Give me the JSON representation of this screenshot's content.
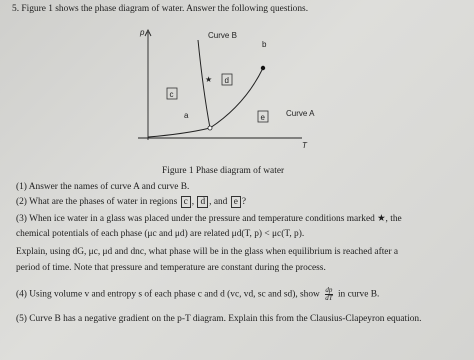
{
  "problem": {
    "heading": "5. Figure 1 shows the phase diagram of water. Answer the following questions.",
    "figure": {
      "axis_y": "p",
      "axis_x": "T",
      "curve_b": "Curve B",
      "curve_a": "Curve A",
      "point_b": "b",
      "point_a": "a",
      "star": "★",
      "regions": [
        "c",
        "d",
        "e"
      ],
      "caption": "Figure 1    Phase diagram of water"
    },
    "questions": [
      "(1) Answer the names of curve A and curve B.",
      [
        "(2) What are the phases of water in regions",
        "c",
        ",",
        "d",
        ", and",
        "e",
        "?"
      ],
      [
        "(3) When ice water in a glass was placed under the pressure and temperature conditions marked ★, the",
        "chemical potentials of each phase (μc and μd) are related μd(T, p) < μc(T, p).",
        "Explain, using dG, μc, μd and dnc, what phase will be in the glass when equilibrium is reached after a",
        "period of time. Note that pressure and temperature are constant during the process."
      ],
      [
        "(4) Using volume v and entropy s of each phase c and d (vc, vd, sc and sd), show",
        "dp",
        "dT",
        "in curve B."
      ],
      "(5) Curve B has a negative gradient on the p-T diagram. Explain this from the Clausius-Clapeyron equation."
    ]
  }
}
